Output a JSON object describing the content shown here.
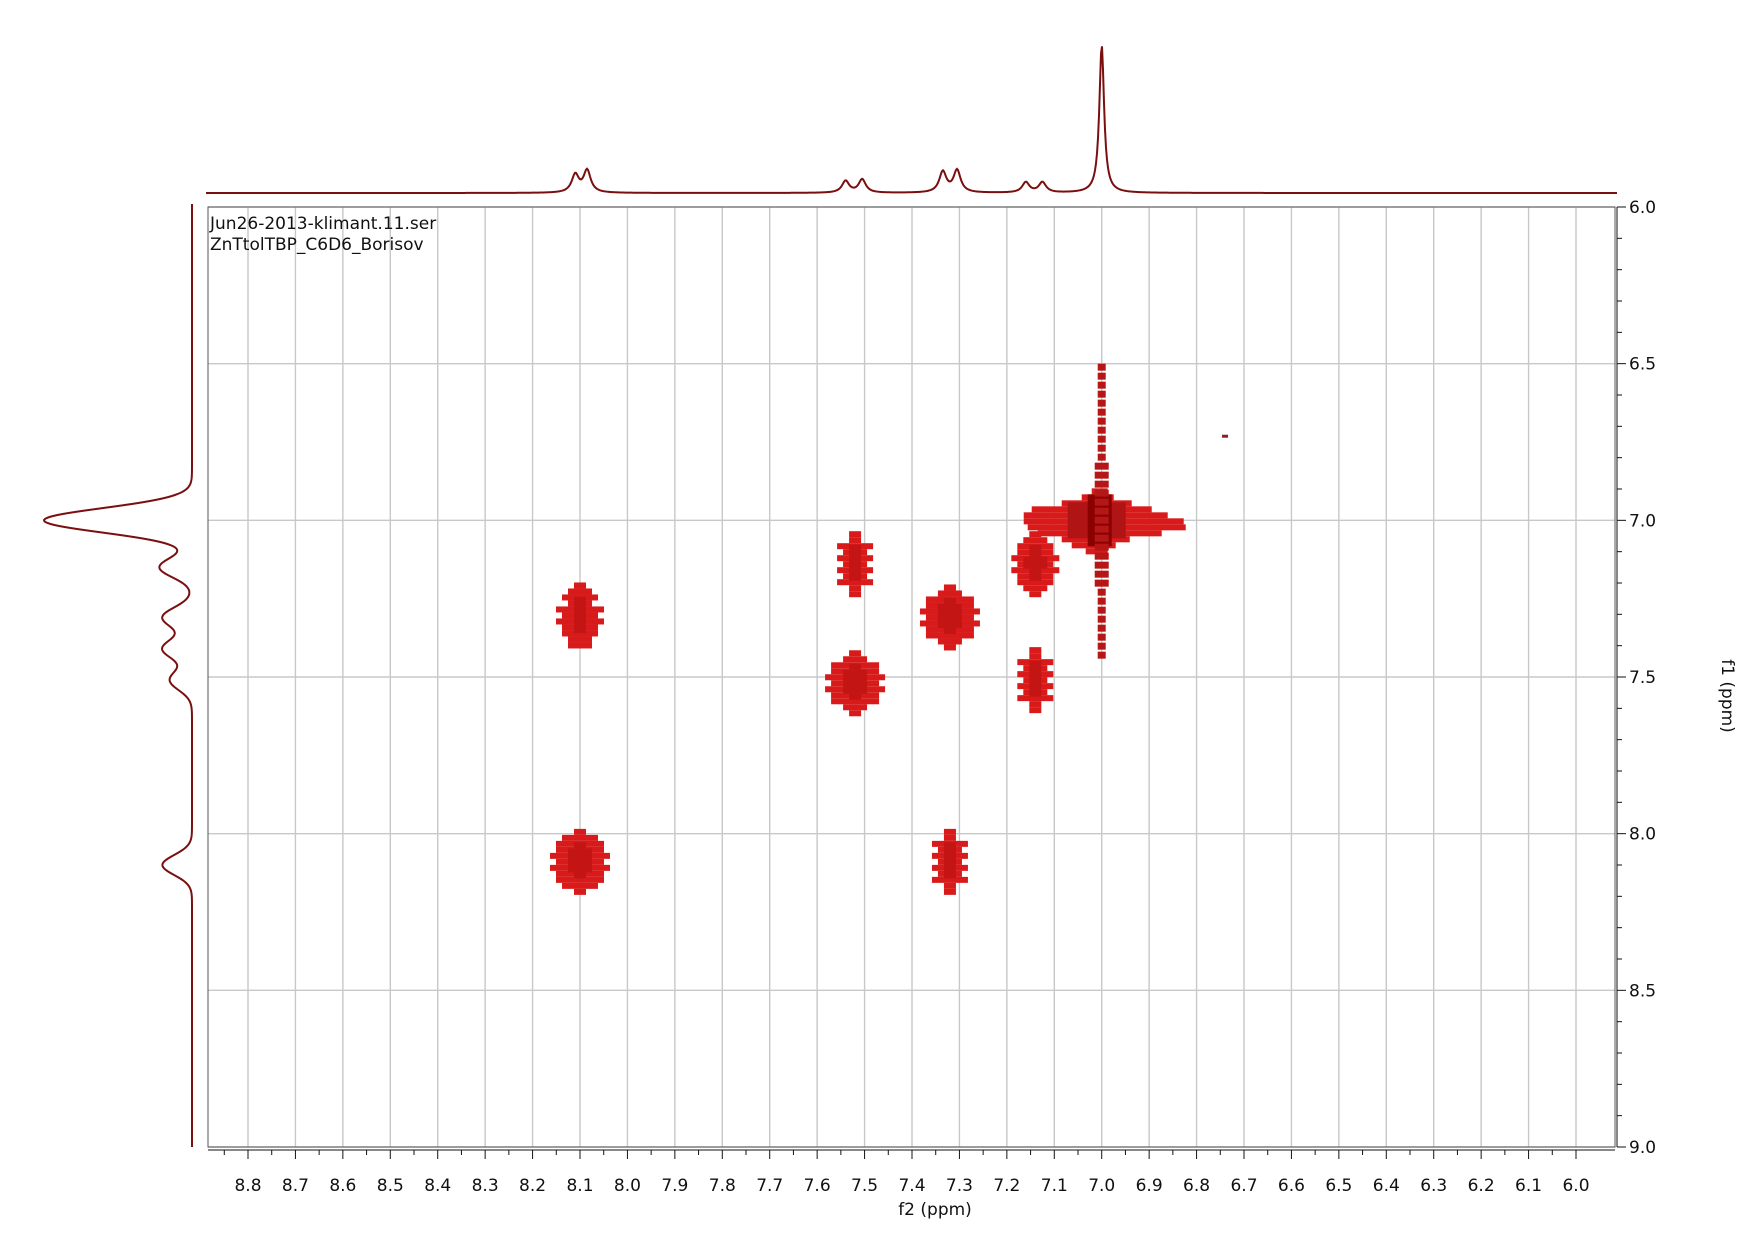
{
  "file_label": "Jun26-2013-klimant.11.ser",
  "sample_label": "ZnTtolTBP_C6D6_Borisov",
  "chart_data": {
    "type": "contour",
    "title": "",
    "xlabel": "f2 (ppm)",
    "ylabel": "f1 (ppm)",
    "xlim": [
      8.88,
      5.93
    ],
    "ylim": [
      6.0,
      9.0
    ],
    "x_reversed": true,
    "y_reversed": true,
    "grid": true,
    "x_ticks": [
      "8.8",
      "8.7",
      "8.6",
      "8.5",
      "8.4",
      "8.3",
      "8.2",
      "8.1",
      "8.0",
      "7.9",
      "7.8",
      "7.7",
      "7.6",
      "7.5",
      "7.4",
      "7.3",
      "7.2",
      "7.1",
      "7.0",
      "6.9",
      "6.8",
      "6.7",
      "6.6",
      "6.5",
      "6.4",
      "6.3",
      "6.2",
      "6.1",
      "6.0"
    ],
    "y_ticks": [
      "6.0",
      "6.5",
      "7.0",
      "7.5",
      "8.0",
      "8.5",
      "9.0"
    ],
    "colors": {
      "peak": "#d81a1a",
      "peak_dark": "#8b0000",
      "trace": "#7a0f0f",
      "grid": "#c8c8c8",
      "axis": "#111111"
    },
    "cross_peaks": [
      {
        "f2": 8.1,
        "f1": 7.31
      },
      {
        "f2": 8.1,
        "f1": 8.09
      },
      {
        "f2": 7.52,
        "f1": 7.14
      },
      {
        "f2": 7.52,
        "f1": 7.52
      },
      {
        "f2": 7.32,
        "f1": 7.31
      },
      {
        "f2": 7.32,
        "f1": 8.09
      },
      {
        "f2": 7.14,
        "f1": 7.14
      },
      {
        "f2": 7.14,
        "f1": 7.51
      }
    ],
    "diagonal_peak": {
      "f2": 7.0,
      "f1": 7.0
    },
    "f2_projection": [
      {
        "ppm": 8.11,
        "height": 0.12
      },
      {
        "ppm": 8.085,
        "height": 0.15
      },
      {
        "ppm": 7.54,
        "height": 0.08
      },
      {
        "ppm": 7.505,
        "height": 0.09
      },
      {
        "ppm": 7.335,
        "height": 0.14
      },
      {
        "ppm": 7.305,
        "height": 0.15
      },
      {
        "ppm": 7.16,
        "height": 0.07
      },
      {
        "ppm": 7.125,
        "height": 0.07
      },
      {
        "ppm": 7.0,
        "height": 1.0
      }
    ],
    "f1_projection": [
      {
        "ppm": 7.0,
        "height": 1.0
      },
      {
        "ppm": 7.15,
        "height": 0.22
      },
      {
        "ppm": 7.31,
        "height": 0.2
      },
      {
        "ppm": 7.41,
        "height": 0.2
      },
      {
        "ppm": 7.51,
        "height": 0.15
      },
      {
        "ppm": 8.1,
        "height": 0.2
      }
    ]
  }
}
